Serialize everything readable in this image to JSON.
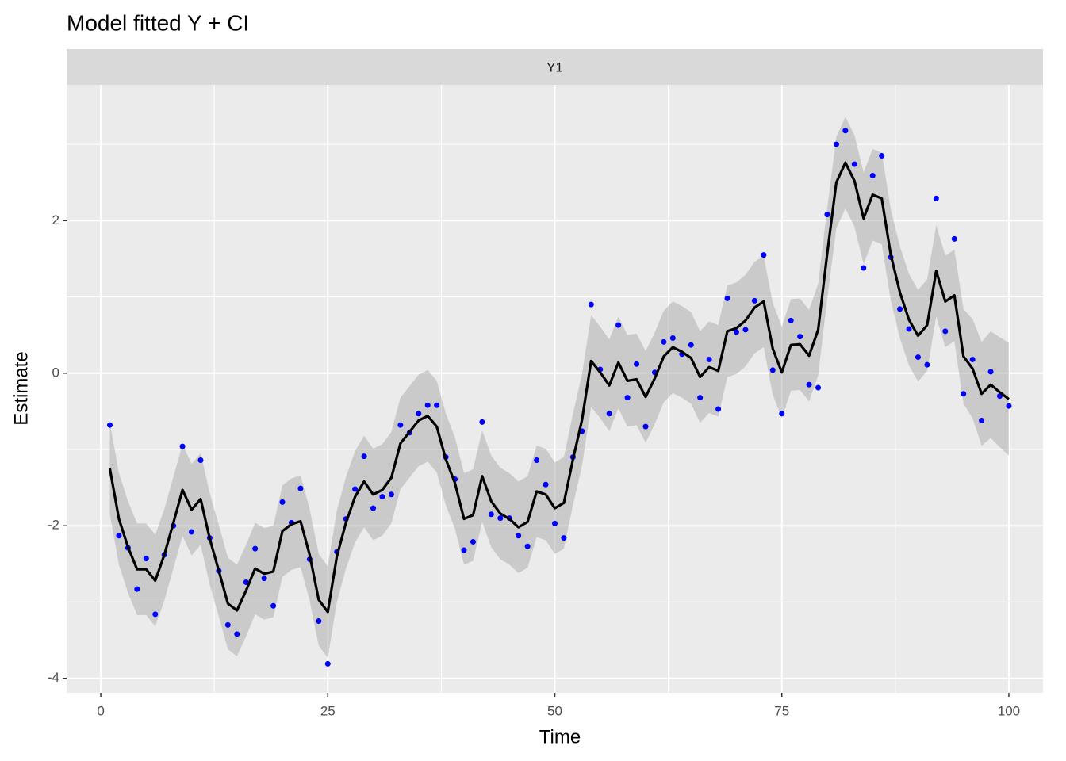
{
  "chart_data": {
    "type": "line",
    "title": "Model fitted Y + CI",
    "facet": "Y1",
    "x_label": "Time",
    "y_label": "Estimate",
    "x": [
      1,
      2,
      3,
      4,
      5,
      6,
      7,
      8,
      9,
      10,
      11,
      12,
      13,
      14,
      15,
      16,
      17,
      18,
      19,
      20,
      21,
      22,
      23,
      24,
      25,
      26,
      27,
      28,
      29,
      30,
      31,
      32,
      33,
      34,
      35,
      36,
      37,
      38,
      39,
      40,
      41,
      42,
      43,
      44,
      45,
      46,
      47,
      48,
      49,
      50,
      51,
      52,
      53,
      54,
      55,
      56,
      57,
      58,
      59,
      60,
      61,
      62,
      63,
      64,
      65,
      66,
      67,
      68,
      69,
      70,
      71,
      72,
      73,
      74,
      75,
      76,
      77,
      78,
      79,
      80,
      81,
      82,
      83,
      84,
      85,
      86,
      87,
      88,
      89,
      90,
      91,
      92,
      93,
      94,
      95,
      96,
      97,
      98,
      99,
      100
    ],
    "ci": {
      "color": "#999999",
      "lower": [
        -1.85,
        -2.51,
        -2.88,
        -3.17,
        -3.17,
        -3.32,
        -2.98,
        -2.56,
        -2.13,
        -2.39,
        -2.25,
        -2.77,
        -3.19,
        -3.62,
        -3.71,
        -3.45,
        -3.16,
        -3.23,
        -3.2,
        -2.67,
        -2.58,
        -2.54,
        -2.98,
        -3.57,
        -3.73,
        -3.0,
        -2.56,
        -2.22,
        -2.02,
        -2.19,
        -2.13,
        -1.97,
        -1.52,
        -1.37,
        -1.22,
        -1.16,
        -1.3,
        -1.73,
        -2.04,
        -2.51,
        -2.46,
        -1.95,
        -2.28,
        -2.44,
        -2.51,
        -2.62,
        -2.55,
        -2.15,
        -2.19,
        -2.37,
        -2.3,
        -1.73,
        -1.21,
        -0.44,
        -0.59,
        -0.76,
        -0.46,
        -0.7,
        -0.68,
        -0.91,
        -0.67,
        -0.38,
        -0.26,
        -0.32,
        -0.4,
        -0.65,
        -0.52,
        -0.57,
        -0.05,
        -0.01,
        0.09,
        0.26,
        0.34,
        -0.28,
        -0.59,
        -0.23,
        -0.22,
        -0.37,
        -0.03,
        0.97,
        1.9,
        2.16,
        1.92,
        1.43,
        1.74,
        1.69,
        0.95,
        0.46,
        0.1,
        -0.11,
        0.03,
        0.74,
        0.34,
        0.42,
        -0.4,
        -0.59,
        -0.95,
        -0.85,
        -0.97,
        -1.08
      ],
      "upper": [
        -0.65,
        -1.31,
        -1.68,
        -1.97,
        -1.97,
        -2.12,
        -1.78,
        -1.36,
        -0.93,
        -1.19,
        -1.05,
        -1.57,
        -1.99,
        -2.42,
        -2.51,
        -2.25,
        -1.96,
        -2.03,
        -2.0,
        -1.47,
        -1.38,
        -1.34,
        -1.78,
        -2.37,
        -2.53,
        -1.8,
        -1.36,
        -1.02,
        -0.82,
        -0.99,
        -0.93,
        -0.77,
        -0.32,
        -0.17,
        -0.02,
        0.04,
        -0.1,
        -0.53,
        -0.84,
        -1.31,
        -1.26,
        -0.75,
        -1.08,
        -1.24,
        -1.31,
        -1.42,
        -1.35,
        -0.95,
        -0.99,
        -1.17,
        -1.1,
        -0.53,
        -0.01,
        0.76,
        0.61,
        0.44,
        0.74,
        0.5,
        0.52,
        0.29,
        0.53,
        0.82,
        0.94,
        0.88,
        0.8,
        0.55,
        0.68,
        0.63,
        1.15,
        1.19,
        1.29,
        1.46,
        1.54,
        0.92,
        0.61,
        0.97,
        0.98,
        0.83,
        1.17,
        2.17,
        3.1,
        3.36,
        3.12,
        2.63,
        2.94,
        2.89,
        2.15,
        1.66,
        1.3,
        1.09,
        1.23,
        1.94,
        1.54,
        1.62,
        0.84,
        0.71,
        0.41,
        0.55,
        0.47,
        0.4
      ]
    },
    "fit": {
      "color": "#000000",
      "values": [
        -1.25,
        -1.91,
        -2.28,
        -2.57,
        -2.57,
        -2.72,
        -2.38,
        -1.96,
        -1.53,
        -1.79,
        -1.65,
        -2.17,
        -2.59,
        -3.02,
        -3.11,
        -2.85,
        -2.56,
        -2.63,
        -2.6,
        -2.07,
        -1.98,
        -1.94,
        -2.38,
        -2.97,
        -3.13,
        -2.4,
        -1.96,
        -1.62,
        -1.42,
        -1.59,
        -1.53,
        -1.37,
        -0.92,
        -0.77,
        -0.62,
        -0.56,
        -0.7,
        -1.13,
        -1.44,
        -1.91,
        -1.86,
        -1.35,
        -1.68,
        -1.84,
        -1.91,
        -2.02,
        -1.95,
        -1.55,
        -1.59,
        -1.77,
        -1.7,
        -1.13,
        -0.61,
        0.16,
        0.01,
        -0.16,
        0.14,
        -0.1,
        -0.08,
        -0.31,
        -0.07,
        0.22,
        0.34,
        0.28,
        0.2,
        -0.05,
        0.08,
        0.03,
        0.55,
        0.59,
        0.69,
        0.86,
        0.94,
        0.32,
        0.01,
        0.37,
        0.38,
        0.23,
        0.57,
        1.57,
        2.5,
        2.76,
        2.52,
        2.03,
        2.34,
        2.29,
        1.55,
        1.06,
        0.7,
        0.49,
        0.63,
        1.34,
        0.94,
        1.02,
        0.22,
        0.06,
        -0.27,
        -0.15,
        -0.25,
        -0.34
      ]
    },
    "points": {
      "color": "#0000ff",
      "values": [
        -0.68,
        -2.13,
        -2.29,
        -2.83,
        -2.43,
        -3.16,
        -2.38,
        -2.0,
        -0.96,
        -2.08,
        -1.14,
        -2.16,
        -2.59,
        -3.3,
        -3.42,
        -2.74,
        -2.3,
        -2.69,
        -3.05,
        -1.69,
        -1.96,
        -1.51,
        -2.44,
        -3.25,
        -3.81,
        -2.34,
        -1.91,
        -1.52,
        -1.09,
        -1.77,
        -1.62,
        -1.59,
        -0.68,
        -0.78,
        -0.53,
        -0.42,
        -0.42,
        -1.1,
        -1.39,
        -2.32,
        -2.21,
        -0.64,
        -1.85,
        -1.9,
        -1.9,
        -2.13,
        -2.27,
        -1.14,
        -1.46,
        -1.97,
        -2.16,
        -1.1,
        -0.76,
        0.9,
        0.05,
        -0.53,
        0.63,
        -0.32,
        0.12,
        -0.7,
        0.01,
        0.41,
        0.46,
        0.25,
        0.37,
        -0.32,
        0.18,
        -0.47,
        0.98,
        0.54,
        0.57,
        0.95,
        1.55,
        0.04,
        -0.53,
        0.69,
        0.48,
        -0.15,
        -0.19,
        2.08,
        3.0,
        3.18,
        2.74,
        1.38,
        2.59,
        2.85,
        1.52,
        0.84,
        0.58,
        0.21,
        0.11,
        2.29,
        0.55,
        1.76,
        -0.27,
        0.18,
        -0.62,
        0.02,
        -0.3,
        -0.43
      ]
    },
    "xlim": [
      -3.76,
      103.76
    ],
    "ylim": [
      -4.19,
      3.78
    ],
    "xticks": [
      0,
      25,
      50,
      75,
      100
    ],
    "yticks": [
      -4,
      -2,
      0,
      2
    ],
    "grid": true
  }
}
